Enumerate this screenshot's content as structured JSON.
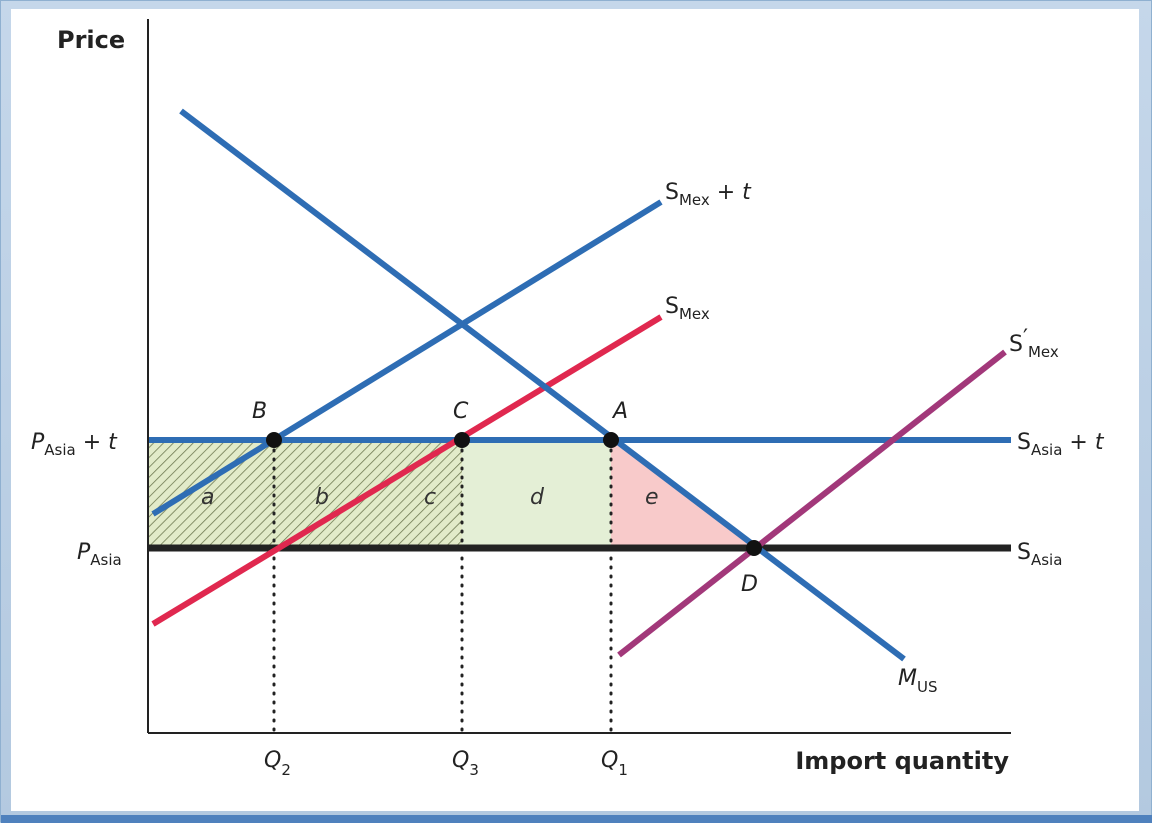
{
  "axes": {
    "y_title": "Price",
    "x_title": "Import quantity"
  },
  "price_labels": {
    "p_asia_t_main": "P",
    "p_asia_t_sub": "Asia",
    "p_asia_t_suffix": " + t",
    "p_asia_main": "P",
    "p_asia_sub": "Asia"
  },
  "quantity_labels": [
    {
      "main": "Q",
      "sub": "2"
    },
    {
      "main": "Q",
      "sub": "3"
    },
    {
      "main": "Q",
      "sub": "1"
    }
  ],
  "curve_labels": {
    "s_mex_t": {
      "main": "S",
      "sub": "Mex",
      "suffix": " + t"
    },
    "s_mex": {
      "main": "S",
      "sub": "Mex"
    },
    "s_mex_prime": {
      "main": "S",
      "prime": "′",
      "sub": "Mex"
    },
    "s_asia_t": {
      "main": "S",
      "sub": "Asia",
      "suffix": " + t"
    },
    "s_asia": {
      "main": "S",
      "sub": "Asia"
    },
    "m_us": {
      "main": "M",
      "sub": "US"
    }
  },
  "points": [
    "B",
    "C",
    "A",
    "D"
  ],
  "areas": [
    "a",
    "b",
    "c",
    "d",
    "e"
  ],
  "colors": {
    "blue_line": "#2e6db4",
    "red_line": "#e0284f",
    "purple_line": "#a2387a",
    "black_line": "#222222",
    "hatch_fill": "#e2ebc9",
    "d_fill": "#e4efd6",
    "e_fill": "#f8caca"
  }
}
